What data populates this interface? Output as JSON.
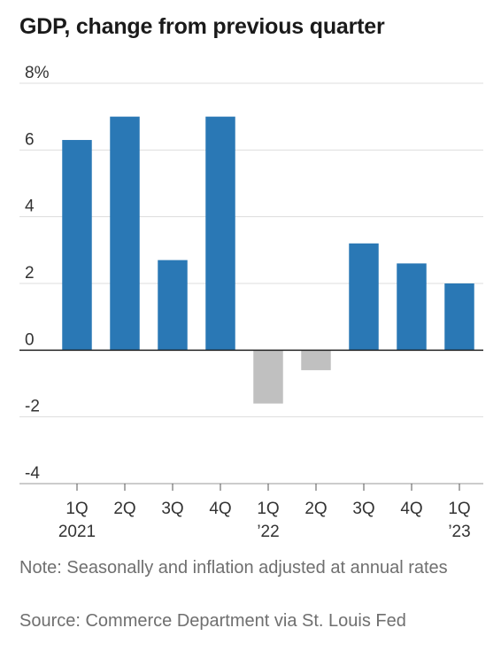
{
  "title": "GDP, change from previous quarter",
  "note": "Note: Seasonally and inflation adjusted at annual rates",
  "source": "Source: Commerce Department via St. Louis Fed",
  "colors": {
    "positive": "#2a78b5",
    "negative": "#c0c0c0",
    "grid": "#dddddd",
    "zero_line": "#222222"
  },
  "chart_data": {
    "type": "bar",
    "title": "GDP, change from previous quarter",
    "xlabel": "",
    "ylabel": "",
    "ylim": [
      -4,
      8
    ],
    "y_ticks": [
      8,
      6,
      4,
      2,
      0,
      -2,
      -4
    ],
    "y_tick_labels": [
      "8%",
      "6",
      "4",
      "2",
      "0",
      "-2",
      "-4"
    ],
    "grid": true,
    "categories": [
      "1Q 2021",
      "2Q 2021",
      "3Q 2021",
      "4Q 2021",
      "1Q 2022",
      "2Q 2022",
      "3Q 2022",
      "4Q 2022",
      "1Q 2023"
    ],
    "tick_labels": [
      [
        "1Q",
        "2021"
      ],
      [
        "2Q"
      ],
      [
        "3Q"
      ],
      [
        "4Q"
      ],
      [
        "1Q",
        "’22"
      ],
      [
        "2Q"
      ],
      [
        "3Q"
      ],
      [
        "4Q"
      ],
      [
        "1Q",
        "’23"
      ]
    ],
    "values": [
      6.3,
      7.0,
      2.7,
      7.0,
      -1.6,
      -0.6,
      3.2,
      2.6,
      2.0
    ]
  }
}
